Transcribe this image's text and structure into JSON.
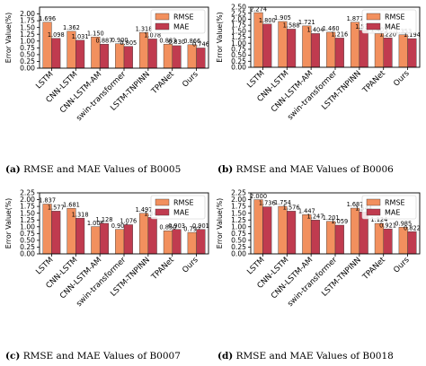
{
  "figure": {
    "colors": {
      "rmse": "#f2905e",
      "mae": "#c03b4f",
      "edge": "#333333"
    },
    "panels": [
      {
        "caption_letter": "(a)",
        "caption_text": "RMSE and MAE Values of B0005"
      },
      {
        "caption_letter": "(b)",
        "caption_text": "RMSE and MAE Values of B0006"
      },
      {
        "caption_letter": "(c)",
        "caption_text": "RMSE and MAE Values of B0007"
      },
      {
        "caption_letter": "(d)",
        "caption_text": "RMSE and MAE Values of B0018"
      }
    ]
  },
  "chart_data": [
    {
      "type": "bar",
      "title": "",
      "xlabel": "",
      "ylabel": "Error Value(%)",
      "ylim": [
        0,
        2.25
      ],
      "yticks": [
        "0.00",
        "0.25",
        "0.50",
        "0.75",
        "1.00",
        "1.25",
        "1.50",
        "1.75",
        "2.00"
      ],
      "categories": [
        "LSTM",
        "CNN-LSTM",
        "CNN-LSTM-AM",
        "swin-transformer",
        "LSTM-TNPINN",
        "TPANet",
        "Ours"
      ],
      "series": [
        {
          "name": "RMSE",
          "values": [
            1.696,
            1.362,
            1.15,
            0.9,
            1.318,
            0.883,
            0.866
          ],
          "labels": [
            "1.696",
            "1.362",
            "1.150",
            "0.900",
            "1.318",
            "0.883",
            "0.866"
          ]
        },
        {
          "name": "MAE",
          "values": [
            1.098,
            1.031,
            0.887,
            0.805,
            1.078,
            0.83,
            0.746
          ],
          "labels": [
            "1.098",
            "1.031",
            "0.887",
            "0.805",
            "1.078",
            "0.830",
            "0.746"
          ]
        }
      ],
      "legend": "top-right",
      "grid": false
    },
    {
      "type": "bar",
      "title": "",
      "xlabel": "",
      "ylabel": "Error Value(%)",
      "ylim": [
        0,
        2.5
      ],
      "yticks": [
        "0.00",
        "0.25",
        "0.50",
        "0.75",
        "1.00",
        "1.25",
        "1.50",
        "1.75",
        "2.00",
        "2.25",
        "2.50"
      ],
      "categories": [
        "LSTM",
        "CNN-LSTM",
        "CNN-LSTM-AM",
        "swin-transformer",
        "LSTM-TNPINN",
        "TPANet",
        "Ours"
      ],
      "series": [
        {
          "name": "RMSE",
          "values": [
            2.274,
            1.905,
            1.721,
            1.46,
            1.877,
            1.403,
            1.353
          ],
          "labels": [
            "2.274",
            "1.905",
            "1.721",
            "1.460",
            "1.877",
            "1.403",
            "1.353"
          ]
        },
        {
          "name": "MAE",
          "values": [
            1.8,
            1.588,
            1.404,
            1.216,
            1.536,
            1.22,
            1.194
          ],
          "labels": [
            "1.800",
            "1.588",
            "1.404",
            "1.216",
            "1.536",
            "1.220",
            "1.194"
          ]
        }
      ],
      "legend": "top-right",
      "grid": false
    },
    {
      "type": "bar",
      "title": "",
      "xlabel": "",
      "ylabel": "Error Value(%)",
      "ylim": [
        0,
        2.25
      ],
      "yticks": [
        "0.00",
        "0.25",
        "0.50",
        "0.75",
        "1.00",
        "1.25",
        "1.50",
        "1.75",
        "2.00",
        "2.25"
      ],
      "categories": [
        "LSTM",
        "CNN-LSTM",
        "CNN-LSTM-AM",
        "swin-transformer",
        "LSTM-TNPINN",
        "TPANet",
        "Ours"
      ],
      "series": [
        {
          "name": "RMSE",
          "values": [
            1.837,
            1.681,
            1.006,
            0.904,
            1.497,
            0.85,
            0.792
          ],
          "labels": [
            "1.837",
            "1.681",
            "1.006",
            "0.904",
            "1.497",
            "0.850",
            "0.792"
          ]
        },
        {
          "name": "MAE",
          "values": [
            1.577,
            1.318,
            1.128,
            1.076,
            1.345,
            0.903,
            0.901
          ],
          "labels": [
            "1.577",
            "1.318",
            "1.128",
            "1.076",
            "1.345",
            "0.903",
            "0.901"
          ]
        }
      ],
      "legend": "top-right",
      "grid": false
    },
    {
      "type": "bar",
      "title": "",
      "xlabel": "",
      "ylabel": "Error Value(%)",
      "ylim": [
        0,
        2.25
      ],
      "yticks": [
        "0.00",
        "0.25",
        "0.50",
        "0.75",
        "1.00",
        "1.25",
        "1.50",
        "1.75",
        "2.00",
        "2.25"
      ],
      "categories": [
        "LSTM",
        "CNN-LSTM",
        "CNN-LSTM-AM",
        "swin-transformer",
        "LSTM-TNPINN",
        "TPANet",
        "Ours"
      ],
      "series": [
        {
          "name": "RMSE",
          "values": [
            2.0,
            1.754,
            1.447,
            1.201,
            1.687,
            1.124,
            0.985
          ],
          "labels": [
            "2.000",
            "1.754",
            "1.447",
            "1.201",
            "1.687",
            "1.124",
            "0.985"
          ]
        },
        {
          "name": "MAE",
          "values": [
            1.736,
            1.576,
            1.247,
            1.059,
            1.544,
            0.921,
            0.822
          ],
          "labels": [
            "1.736",
            "1.576",
            "1.247",
            "1.059",
            "1.544",
            "0.921",
            "0.822"
          ]
        }
      ],
      "legend": "top-right",
      "grid": false
    }
  ]
}
